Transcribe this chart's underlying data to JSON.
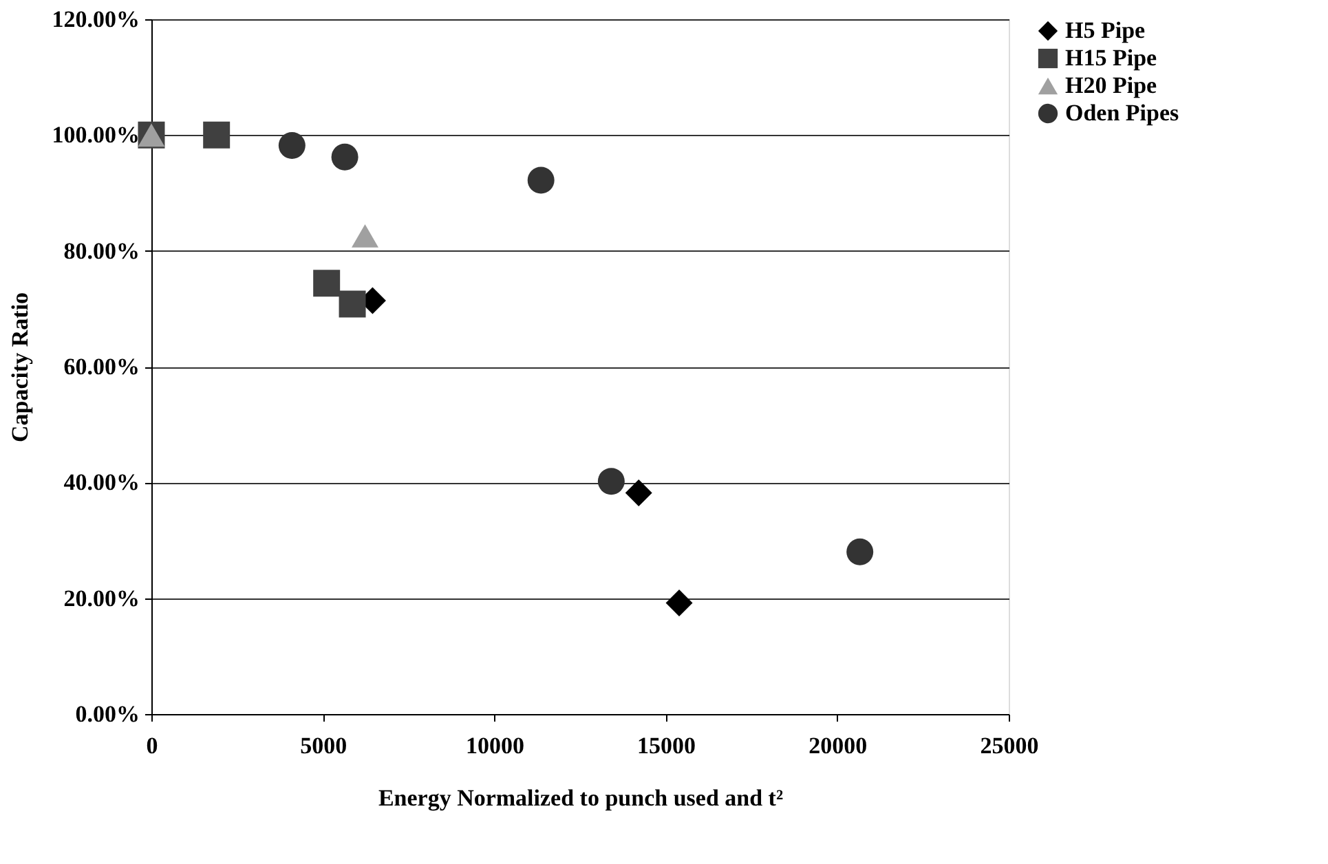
{
  "chart_data": {
    "type": "scatter",
    "xlabel": "Energy Normalized to punch used and t²",
    "ylabel": "Capacity Ratio",
    "xlim": [
      0,
      25000
    ],
    "xticks": [
      0,
      5000,
      10000,
      15000,
      20000,
      25000
    ],
    "ylim": [
      0,
      120
    ],
    "yticks": [
      {
        "value": 0,
        "label": "0.00%"
      },
      {
        "value": 20,
        "label": "20.00%"
      },
      {
        "value": 40,
        "label": "40.00%"
      },
      {
        "value": 60,
        "label": "60.00%"
      },
      {
        "value": 80,
        "label": "80.00%"
      },
      {
        "value": 100,
        "label": "100.00%"
      },
      {
        "value": 120,
        "label": "120.00%"
      }
    ],
    "grid": "y",
    "legend": "right",
    "series": [
      {
        "name": "H5 Pipe",
        "color": "#000000",
        "marker": "diamond",
        "x": [
          6450,
          14210,
          15390
        ],
        "values": [
          71.4,
          38.2,
          19.2
        ]
      },
      {
        "name": "H15 Pipe",
        "color": "#404040",
        "marker": "square",
        "x": [
          0,
          1900,
          5110,
          5860
        ],
        "values": [
          100,
          100,
          74.4,
          70.8
        ]
      },
      {
        "name": "H20 Pipe",
        "color": "#a0a0a0",
        "marker": "triangle",
        "x": [
          0,
          6230
        ],
        "values": [
          100,
          82.6
        ]
      },
      {
        "name": "Oden Pipes",
        "color": "#333333",
        "marker": "circle",
        "x": [
          4100,
          5640,
          11360,
          13410,
          20660
        ],
        "values": [
          98.2,
          96.2,
          92.2,
          40.2,
          28.0
        ]
      }
    ]
  }
}
